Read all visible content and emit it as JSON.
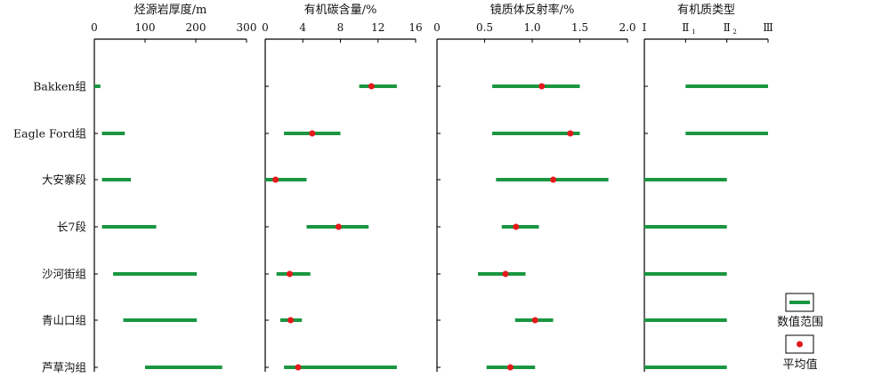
{
  "colors": {
    "range": "#1a9641",
    "mean": "#e41a1c",
    "axis": "#000000"
  },
  "categories": [
    "Bakken组",
    "Eagle Ford组",
    "大安寨段",
    "长7段",
    "沙河街组",
    "青山口组",
    "芦草沟组"
  ],
  "chart_data": [
    {
      "type": "range",
      "title": "烃源岩厚度/m",
      "xlim": [
        0,
        300
      ],
      "ticks": [
        0,
        100,
        200,
        300
      ],
      "tick_labels": [
        "0",
        "100",
        "200",
        "300"
      ],
      "categories": [
        "Bakken组",
        "Eagle Ford组",
        "大安寨段",
        "长7段",
        "沙河街组",
        "青山口组",
        "芦草沟组"
      ],
      "ranges": [
        [
          0,
          12
        ],
        [
          15,
          60
        ],
        [
          15,
          72
        ],
        [
          15,
          122
        ],
        [
          37,
          202
        ],
        [
          57,
          202
        ],
        [
          100,
          252
        ]
      ],
      "means": []
    },
    {
      "type": "range",
      "title": "有机碳含量/%",
      "xlim": [
        0,
        16
      ],
      "ticks": [
        0,
        4,
        8,
        12,
        16
      ],
      "tick_labels": [
        "0",
        "4",
        "8",
        "12",
        "16"
      ],
      "categories": [
        "Bakken组",
        "Eagle Ford组",
        "大安寨段",
        "长7段",
        "沙河街组",
        "青山口组",
        "芦草沟组"
      ],
      "ranges": [
        [
          10,
          14
        ],
        [
          2,
          8
        ],
        [
          0,
          4.4
        ],
        [
          4.4,
          11
        ],
        [
          1.2,
          4.8
        ],
        [
          1.6,
          3.9
        ],
        [
          2,
          14
        ]
      ],
      "means": [
        11.3,
        5,
        1.1,
        7.8,
        2.6,
        2.7,
        3.5
      ]
    },
    {
      "type": "range",
      "title": "镜质体反射率/%",
      "xlim": [
        0,
        2.0
      ],
      "ticks": [
        0,
        0.5,
        1.0,
        1.5,
        2.0
      ],
      "tick_labels": [
        "0",
        "0.5",
        "1.0",
        "1.5",
        "2.0"
      ],
      "categories": [
        "Bakken组",
        "Eagle Ford组",
        "大安寨段",
        "长7段",
        "沙河街组",
        "青山口组",
        "芦草沟组"
      ],
      "ranges": [
        [
          0.58,
          1.5
        ],
        [
          0.58,
          1.5
        ],
        [
          0.62,
          1.8
        ],
        [
          0.68,
          1.07
        ],
        [
          0.43,
          0.93
        ],
        [
          0.82,
          1.22
        ],
        [
          0.52,
          1.03
        ]
      ],
      "means": [
        1.1,
        1.4,
        1.22,
        0.83,
        0.72,
        1.03,
        0.77
      ]
    },
    {
      "type": "range",
      "title": "有机质类型",
      "xlim": [
        0,
        3
      ],
      "ticks": [
        0,
        1,
        2,
        3
      ],
      "tick_labels": [
        "Ⅰ",
        "Ⅱ",
        "Ⅱ",
        "Ⅲ"
      ],
      "tick_subscripts": [
        "",
        "1",
        "2",
        ""
      ],
      "categories": [
        "Bakken组",
        "Eagle Ford组",
        "大安寨段",
        "长7段",
        "沙河街组",
        "青山口组",
        "芦草沟组"
      ],
      "ranges": [
        [
          1,
          3
        ],
        [
          1,
          3
        ],
        [
          0,
          2
        ],
        [
          0,
          2
        ],
        [
          0,
          2
        ],
        [
          0,
          2
        ],
        [
          0,
          2
        ]
      ],
      "means": []
    }
  ],
  "legend": {
    "range_label": "数值范围",
    "mean_label": "平均值"
  }
}
